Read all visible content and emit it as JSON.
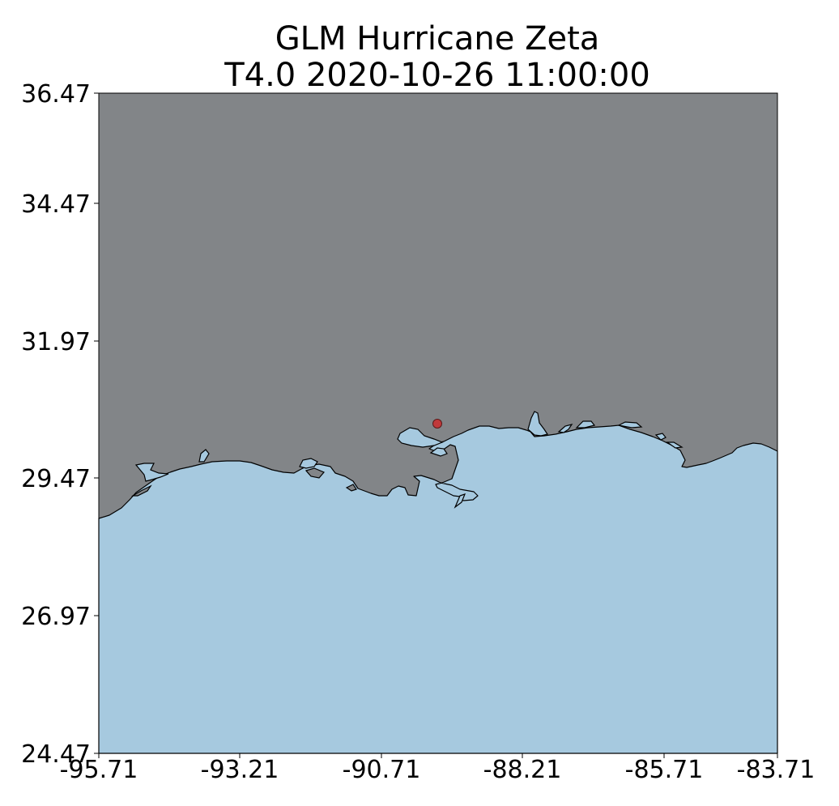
{
  "title": {
    "line1": "GLM Hurricane Zeta",
    "line2": "T4.0 2020-10-26 11:00:00"
  },
  "map": {
    "projection": "PlateCarree",
    "lon_range": [
      -95.71,
      -83.71
    ],
    "lat_range": [
      24.47,
      36.47
    ],
    "land_color": "#828588",
    "ocean_color": "#a6c9df",
    "coastline_color": "#000000",
    "storm_center": {
      "lon": -89.7,
      "lat": 30.5,
      "color": "#c0393b"
    }
  },
  "axes": {
    "x_ticks": [
      "-95.71",
      "-93.21",
      "-90.71",
      "-88.21",
      "-85.71",
      "-83.71"
    ],
    "y_ticks": [
      "36.47",
      "34.47",
      "31.97",
      "29.47",
      "26.97",
      "24.47"
    ]
  }
}
